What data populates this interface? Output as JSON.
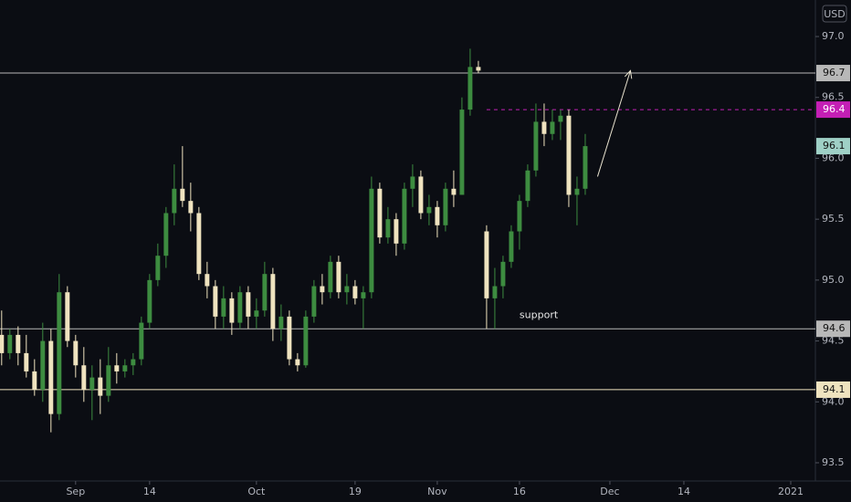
{
  "chart_data": {
    "type": "candlestick",
    "currency": "USD",
    "x": [
      -9,
      -8,
      -7,
      -6,
      -5,
      -4,
      -3,
      -2,
      -1,
      0,
      1,
      2,
      3,
      4,
      5,
      6,
      7,
      8,
      9,
      10,
      11,
      12,
      13,
      14,
      15,
      16,
      17,
      18,
      19,
      20,
      21,
      22,
      23,
      24,
      25,
      26,
      27,
      28,
      29,
      30,
      31,
      32,
      33,
      34,
      35,
      36,
      37,
      38,
      39,
      40,
      41,
      42,
      43,
      44,
      45,
      46,
      47,
      48,
      49,
      50,
      51,
      52,
      53,
      54,
      55,
      56,
      57,
      58,
      59,
      60,
      61,
      62
    ],
    "open": [
      94.55,
      94.4,
      94.55,
      94.4,
      94.25,
      94.1,
      94.5,
      93.9,
      94.9,
      94.5,
      94.3,
      94.1,
      94.2,
      94.05,
      94.3,
      94.25,
      94.3,
      94.35,
      94.65,
      95.0,
      95.2,
      95.55,
      95.75,
      95.65,
      95.55,
      95.05,
      94.95,
      94.7,
      94.85,
      94.65,
      94.9,
      94.7,
      94.75,
      95.05,
      94.6,
      94.7,
      94.35,
      94.3,
      94.7,
      94.95,
      94.9,
      95.15,
      94.9,
      94.95,
      94.85,
      94.9,
      95.75,
      95.35,
      95.5,
      95.3,
      95.75,
      95.85,
      95.55,
      95.6,
      95.45,
      95.75,
      95.7,
      96.4,
      96.75,
      95.4,
      94.85,
      94.95,
      95.15,
      95.4,
      95.65,
      95.9,
      96.3,
      96.2,
      96.3,
      96.35,
      95.7,
      95.75
    ],
    "high": [
      94.75,
      94.6,
      94.62,
      94.55,
      94.35,
      94.65,
      94.6,
      95.05,
      94.95,
      94.55,
      94.45,
      94.3,
      94.35,
      94.45,
      94.4,
      94.35,
      94.4,
      94.7,
      95.05,
      95.3,
      95.6,
      95.95,
      96.1,
      95.8,
      95.6,
      95.15,
      95.0,
      94.95,
      94.9,
      94.95,
      94.95,
      94.85,
      95.15,
      95.1,
      94.8,
      94.75,
      94.4,
      94.75,
      95.0,
      95.05,
      95.2,
      95.2,
      95.05,
      95.0,
      94.95,
      95.85,
      95.8,
      95.6,
      95.55,
      95.8,
      95.95,
      95.9,
      95.7,
      95.65,
      95.8,
      95.9,
      96.5,
      96.9,
      96.8,
      95.45,
      95.1,
      95.2,
      95.45,
      95.7,
      95.95,
      96.45,
      96.45,
      96.4,
      96.4,
      96.4,
      95.85,
      96.2
    ],
    "low": [
      94.3,
      94.35,
      94.3,
      94.2,
      94.05,
      94.0,
      93.75,
      93.85,
      94.45,
      94.2,
      94.0,
      93.85,
      93.9,
      94.0,
      94.15,
      94.2,
      94.22,
      94.3,
      94.6,
      94.95,
      95.1,
      95.45,
      95.6,
      95.4,
      95.0,
      94.85,
      94.6,
      94.6,
      94.55,
      94.6,
      94.6,
      94.6,
      94.7,
      94.5,
      94.5,
      94.3,
      94.25,
      94.28,
      94.65,
      94.8,
      94.85,
      94.85,
      94.8,
      94.8,
      94.6,
      94.85,
      95.3,
      95.3,
      95.2,
      95.25,
      95.6,
      95.5,
      95.45,
      95.35,
      95.4,
      95.6,
      95.7,
      96.35,
      96.7,
      94.6,
      94.6,
      94.85,
      95.1,
      95.25,
      95.6,
      95.85,
      96.1,
      96.15,
      96.15,
      95.6,
      95.45,
      95.7
    ],
    "close": [
      94.4,
      94.55,
      94.4,
      94.25,
      94.1,
      94.5,
      93.9,
      94.9,
      94.5,
      94.3,
      94.1,
      94.2,
      94.05,
      94.3,
      94.25,
      94.3,
      94.35,
      94.65,
      95.0,
      95.2,
      95.55,
      95.75,
      95.65,
      95.55,
      95.05,
      94.95,
      94.7,
      94.85,
      94.65,
      94.9,
      94.7,
      94.75,
      95.05,
      94.6,
      94.7,
      94.35,
      94.3,
      94.7,
      94.95,
      94.9,
      95.15,
      94.9,
      94.95,
      94.85,
      94.9,
      95.75,
      95.35,
      95.5,
      95.3,
      95.75,
      95.85,
      95.55,
      95.6,
      95.45,
      95.75,
      95.7,
      96.4,
      96.75,
      96.72,
      94.85,
      94.95,
      95.15,
      95.4,
      95.65,
      95.9,
      96.3,
      96.2,
      96.3,
      96.35,
      95.7,
      95.75,
      96.1
    ],
    "up_color": "#3d8c40",
    "down_color": "#efe3bf",
    "last_color": "#9fd0c6",
    "xlim": [
      -9.2,
      90
    ],
    "xticks": [
      {
        "value": 0,
        "label": "Sep"
      },
      {
        "value": 9,
        "label": "14"
      },
      {
        "value": 22,
        "label": "Oct"
      },
      {
        "value": 34,
        "label": "19"
      },
      {
        "value": 44,
        "label": "Nov"
      },
      {
        "value": 54,
        "label": "16"
      },
      {
        "value": 65,
        "label": "Dec"
      },
      {
        "value": 74,
        "label": "14"
      },
      {
        "value": 87,
        "label": "2021"
      }
    ],
    "ylim": [
      93.35,
      97.3
    ],
    "yticks": [
      93.5,
      {
        "value": 94,
        "label": "94.0"
      },
      94.5,
      {
        "value": 95,
        "label": "95.0"
      },
      95.5,
      {
        "value": 96,
        "label": "96.0"
      },
      96.5,
      {
        "value": 97,
        "label": "97.0"
      }
    ],
    "levels": [
      {
        "value": 96.7,
        "color": "#b8b8b8",
        "dashed": false
      },
      {
        "value": 96.4,
        "color": "#c41fb5",
        "dashed": true,
        "from": 50
      },
      {
        "value": 94.6,
        "color": "#b8b8b8",
        "dashed": false
      },
      {
        "value": 94.1,
        "color": "#efe3bf",
        "dashed": false
      }
    ],
    "annotation": {
      "text": "support",
      "x": 54,
      "y": 94.71
    },
    "arrow": {
      "from": [
        63.5,
        95.85
      ],
      "to": [
        67.5,
        96.72
      ]
    }
  }
}
